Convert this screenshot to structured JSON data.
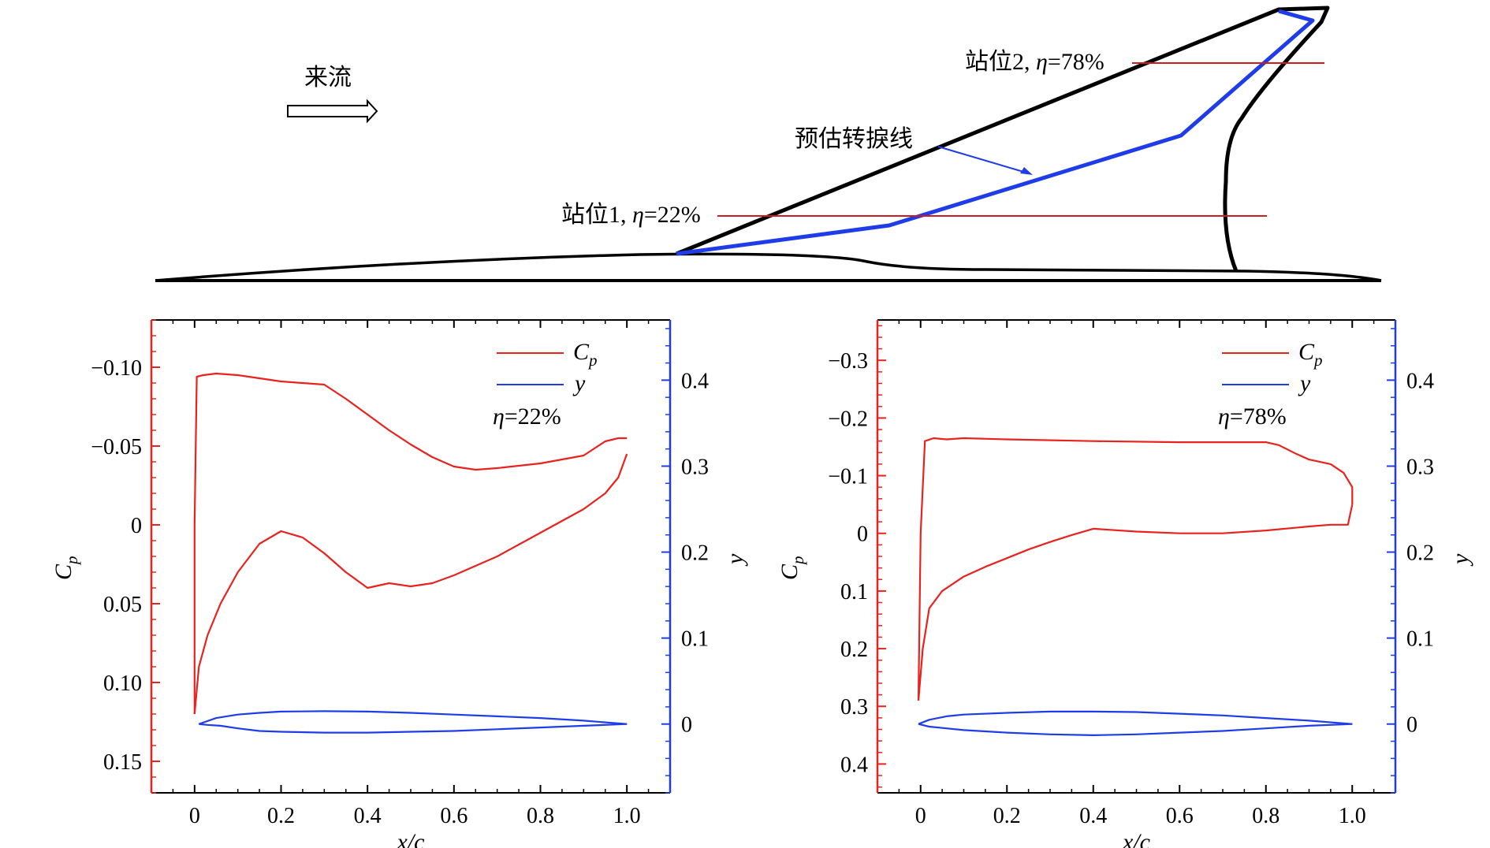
{
  "wing": {
    "freestream_label": "来流",
    "transition_label": "预估转捩线",
    "station1_prefix": "站位1, ",
    "station1_eta": "η",
    "station1_value": "=22%",
    "station2_prefix": "站位2, ",
    "station2_eta": "η",
    "station2_value": "=78%"
  },
  "chart_data": [
    {
      "type": "line",
      "title": "η=22%",
      "annotation": "η=22%",
      "xlabel": "x/c",
      "ylabel_left": "C_p",
      "ylabel_right": "y",
      "xlim": [
        -0.1,
        1.1
      ],
      "ylim_left": [
        0.17,
        -0.13
      ],
      "left_axis_inverted": true,
      "ylim_right": [
        -0.08,
        0.47
      ],
      "x_ticks": [
        "0",
        "0.2",
        "0.4",
        "0.6",
        "0.8",
        "1.0"
      ],
      "y_left_ticks": [
        "−0.10",
        "−0.05",
        "0",
        "0.05",
        "0.10",
        "0.15"
      ],
      "y_left_tick_values": [
        -0.1,
        -0.05,
        0,
        0.05,
        0.1,
        0.15
      ],
      "y_right_ticks": [
        "0.4",
        "0.3",
        "0.2",
        "0.1",
        "0"
      ],
      "y_right_tick_values": [
        0.4,
        0.3,
        0.2,
        0.1,
        0
      ],
      "legend": [
        "C_p",
        "y"
      ],
      "series": [
        {
          "name": "Cp upper",
          "axis": "left",
          "color": "#e8221d",
          "x": [
            0.0,
            0.0,
            0.005,
            0.02,
            0.05,
            0.1,
            0.15,
            0.2,
            0.25,
            0.3,
            0.35,
            0.4,
            0.45,
            0.5,
            0.55,
            0.6,
            0.65,
            0.7,
            0.8,
            0.9,
            0.95,
            0.98,
            1.0
          ],
          "values": [
            0.12,
            0.0,
            -0.094,
            -0.095,
            -0.096,
            -0.095,
            -0.093,
            -0.091,
            -0.09,
            -0.089,
            -0.08,
            -0.07,
            -0.06,
            -0.051,
            -0.043,
            -0.037,
            -0.035,
            -0.036,
            -0.039,
            -0.044,
            -0.053,
            -0.055,
            -0.055
          ]
        },
        {
          "name": "Cp lower",
          "axis": "left",
          "color": "#e8221d",
          "x": [
            0.0,
            0.01,
            0.03,
            0.06,
            0.1,
            0.15,
            0.2,
            0.25,
            0.3,
            0.35,
            0.4,
            0.45,
            0.5,
            0.55,
            0.6,
            0.7,
            0.8,
            0.9,
            0.95,
            0.98,
            1.0
          ],
          "values": [
            0.12,
            0.09,
            0.07,
            0.05,
            0.03,
            0.012,
            0.004,
            0.008,
            0.018,
            0.03,
            0.04,
            0.037,
            0.039,
            0.037,
            0.032,
            0.02,
            0.005,
            -0.01,
            -0.02,
            -0.03,
            -0.045
          ]
        },
        {
          "name": "y upper",
          "axis": "right",
          "color": "#1e3de8",
          "x": [
            0.01,
            0.05,
            0.1,
            0.15,
            0.2,
            0.3,
            0.4,
            0.5,
            0.6,
            0.7,
            0.8,
            0.9,
            1.0
          ],
          "values": [
            0.0,
            0.007,
            0.011,
            0.013,
            0.0145,
            0.015,
            0.0145,
            0.013,
            0.011,
            0.009,
            0.007,
            0.004,
            0.0
          ]
        },
        {
          "name": "y lower",
          "axis": "right",
          "color": "#1e3de8",
          "x": [
            0.01,
            0.03,
            0.06,
            0.1,
            0.15,
            0.2,
            0.3,
            0.4,
            0.5,
            0.6,
            0.7,
            0.8,
            0.9,
            1.0
          ],
          "values": [
            0.0,
            -0.001,
            -0.002,
            -0.005,
            -0.008,
            -0.009,
            -0.01,
            -0.01,
            -0.009,
            -0.008,
            -0.006,
            -0.004,
            -0.002,
            0.0
          ]
        }
      ]
    },
    {
      "type": "line",
      "title": "η=78%",
      "annotation": "η=78%",
      "xlabel": "x/c",
      "ylabel_left": "C_p",
      "ylabel_right": "y",
      "xlim": [
        -0.1,
        1.1
      ],
      "ylim_left": [
        0.45,
        -0.37
      ],
      "left_axis_inverted": true,
      "ylim_right": [
        -0.08,
        0.47
      ],
      "x_ticks": [
        "0",
        "0.2",
        "0.4",
        "0.6",
        "0.8",
        "1.0"
      ],
      "y_left_ticks": [
        "−0.3",
        "−0.2",
        "−0.1",
        "0",
        "0.1",
        "0.2",
        "0.3",
        "0.4"
      ],
      "y_left_tick_values": [
        -0.3,
        -0.2,
        -0.1,
        0,
        0.1,
        0.2,
        0.3,
        0.4
      ],
      "y_right_ticks": [
        "0.4",
        "0.3",
        "0.2",
        "0.1",
        "0"
      ],
      "y_right_tick_values": [
        0.4,
        0.3,
        0.2,
        0.1,
        0
      ],
      "legend": [
        "C_p",
        "y"
      ],
      "series": [
        {
          "name": "Cp upper",
          "axis": "left",
          "color": "#e8221d",
          "x": [
            -0.005,
            0.0,
            0.01,
            0.03,
            0.06,
            0.1,
            0.2,
            0.4,
            0.6,
            0.8,
            0.83,
            0.87,
            0.9,
            0.95,
            0.98,
            1.0,
            1.0
          ],
          "values": [
            0.29,
            0.0,
            -0.16,
            -0.165,
            -0.163,
            -0.165,
            -0.163,
            -0.16,
            -0.158,
            -0.158,
            -0.153,
            -0.138,
            -0.128,
            -0.12,
            -0.105,
            -0.08,
            -0.05
          ]
        },
        {
          "name": "Cp lower",
          "axis": "left",
          "color": "#e8221d",
          "x": [
            -0.005,
            0.005,
            0.02,
            0.05,
            0.1,
            0.15,
            0.2,
            0.25,
            0.3,
            0.35,
            0.4,
            0.5,
            0.6,
            0.7,
            0.8,
            0.9,
            0.95,
            0.99,
            1.0
          ],
          "values": [
            0.29,
            0.2,
            0.13,
            0.1,
            0.075,
            0.058,
            0.043,
            0.028,
            0.015,
            0.003,
            -0.008,
            -0.003,
            0.0,
            0.0,
            -0.005,
            -0.012,
            -0.015,
            -0.015,
            -0.05
          ]
        },
        {
          "name": "y upper",
          "axis": "right",
          "color": "#1e3de8",
          "x": [
            -0.005,
            0.02,
            0.06,
            0.1,
            0.2,
            0.3,
            0.4,
            0.5,
            0.6,
            0.7,
            0.8,
            0.9,
            1.0
          ],
          "values": [
            0.0,
            0.005,
            0.009,
            0.011,
            0.013,
            0.0145,
            0.0145,
            0.014,
            0.012,
            0.01,
            0.007,
            0.004,
            0.0
          ]
        },
        {
          "name": "y lower",
          "axis": "right",
          "color": "#1e3de8",
          "x": [
            -0.005,
            0.02,
            0.06,
            0.1,
            0.2,
            0.3,
            0.4,
            0.5,
            0.6,
            0.7,
            0.8,
            0.9,
            1.0
          ],
          "values": [
            0.0,
            -0.003,
            -0.005,
            -0.007,
            -0.01,
            -0.012,
            -0.013,
            -0.012,
            -0.01,
            -0.008,
            -0.005,
            -0.002,
            0.0
          ]
        }
      ]
    }
  ]
}
